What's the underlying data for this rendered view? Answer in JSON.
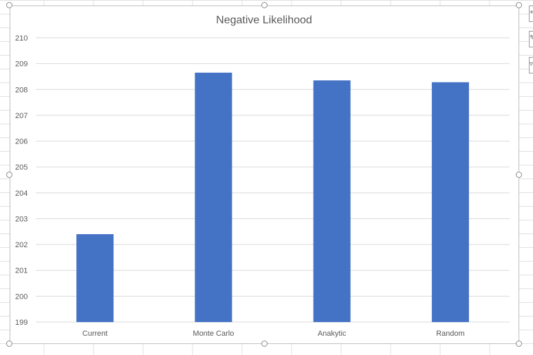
{
  "chart_data": {
    "type": "bar",
    "title": "Negative Likelihood",
    "categories": [
      "Current",
      "Monte Carlo",
      "Anakytic",
      "Random"
    ],
    "series": [
      {
        "values": [
          202.4,
          208.65,
          208.35,
          208.28
        ]
      }
    ],
    "ylim": [
      199,
      210
    ],
    "yticks": [
      "199",
      "200",
      "201",
      "202",
      "203",
      "204",
      "205",
      "206",
      "207",
      "208",
      "209",
      "210"
    ],
    "xlabel": "",
    "ylabel": "",
    "grid": true,
    "legend": "none",
    "colors": {
      "bar": "#4472c4",
      "gridline": "#d9d9d9",
      "title": "#595959",
      "tick_label": "#595959"
    }
  },
  "toolbar": {
    "icons": [
      "chart-elements-icon",
      "chart-styles-icon",
      "chart-filters-icon"
    ]
  }
}
